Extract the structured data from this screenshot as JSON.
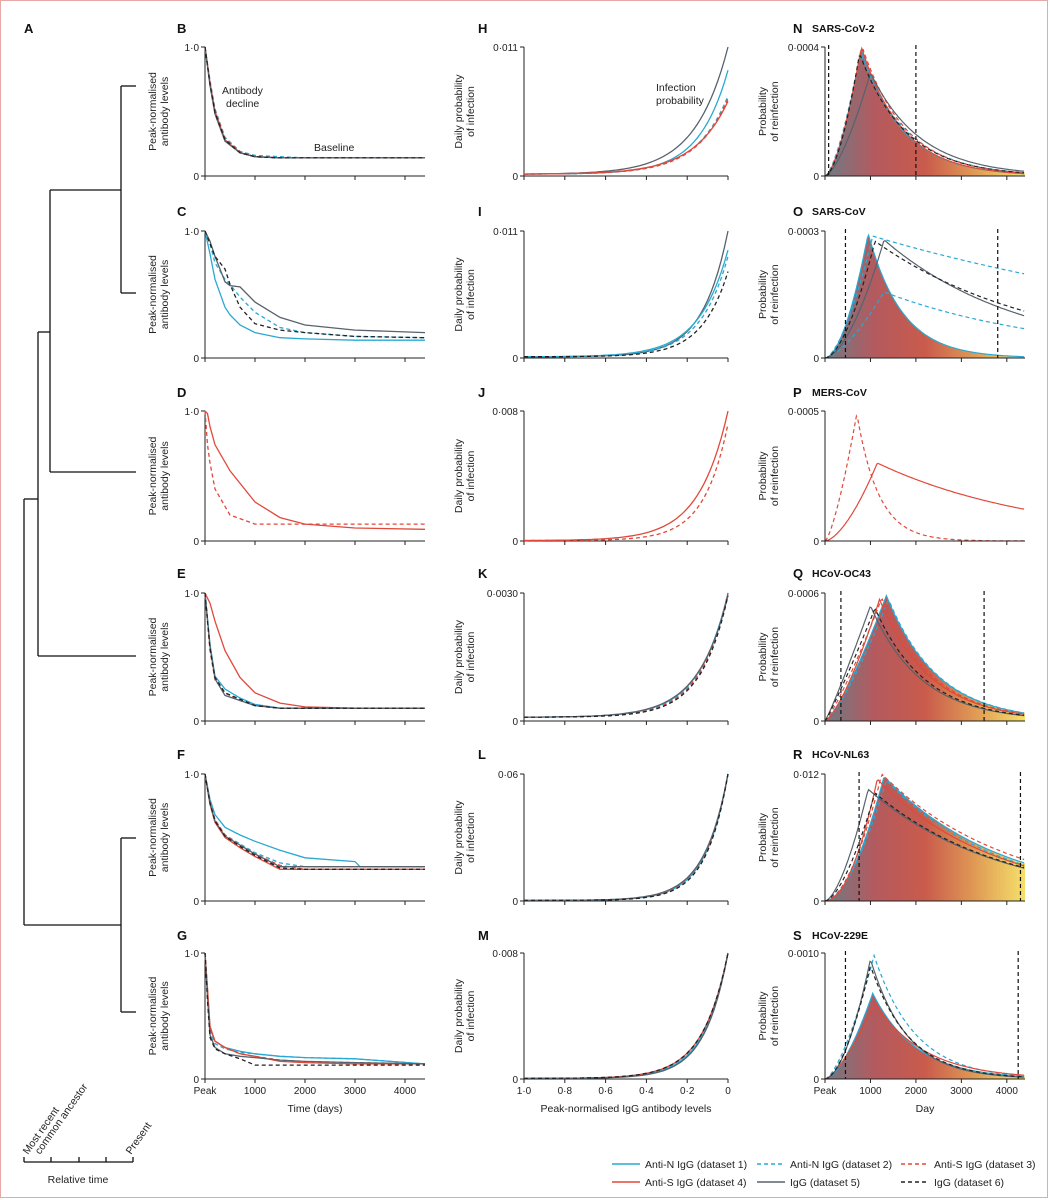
{
  "figure": {
    "panel_letters": {
      "A": "A",
      "B": "B",
      "C": "C",
      "D": "D",
      "E": "E",
      "F": "F",
      "G": "G",
      "H": "H",
      "I": "I",
      "J": "J",
      "K": "K",
      "L": "L",
      "M": "M",
      "N": "N",
      "O": "O",
      "P": "P",
      "Q": "Q",
      "R": "R",
      "S": "S"
    },
    "annotations": {
      "antibody_decline": [
        "Antibody",
        "decline"
      ],
      "baseline": "Baseline",
      "infection_probability": [
        "Infection",
        "probability"
      ]
    },
    "tree": {
      "time_labels": [
        "Most recent",
        "common ancestor",
        "Present"
      ],
      "axis_label": "Relative time"
    },
    "axis_titles": {
      "antibody": [
        "Peak-normalised",
        "antibody levels"
      ],
      "daily": [
        "Daily probability",
        "of infection"
      ],
      "reinfection": [
        "Probability",
        "of reinfection"
      ],
      "time_days": "Time (days)",
      "igg_levels": "Peak-normalised IgG antibody levels",
      "day": "Day"
    },
    "x_ticks": {
      "time": [
        "Peak",
        "1000",
        "2000",
        "3000",
        "4000"
      ],
      "levels": [
        "1·0",
        "0·8",
        "0·6",
        "0·4",
        "0·2",
        "0"
      ]
    }
  },
  "legend": [
    {
      "label": "Anti-N IgG (dataset 1)",
      "color": "#29a9d2",
      "dash": false
    },
    {
      "label": "Anti-N IgG (dataset 2)",
      "color": "#29a9d2",
      "dash": true
    },
    {
      "label": "Anti-S IgG (dataset 3)",
      "color": "#e0493a",
      "dash": true
    },
    {
      "label": "Anti-S IgG (dataset 4)",
      "color": "#e0493a",
      "dash": false
    },
    {
      "label": "IgG (dataset 5)",
      "color": "#58626d",
      "dash": false
    },
    {
      "label": "IgG (dataset 6)",
      "color": "#222222",
      "dash": true
    }
  ],
  "chart_data": [
    {
      "panel": "B",
      "type": "line",
      "xlabel": "",
      "ylabel": "Peak-normalised antibody levels",
      "x": [
        0,
        100,
        200,
        400,
        700,
        1000,
        1500,
        2000,
        3000,
        4400
      ],
      "series": [
        {
          "dataset": 1,
          "values": [
            1.0,
            0.72,
            0.5,
            0.28,
            0.18,
            0.15,
            0.14,
            0.14,
            0.14,
            0.14
          ]
        },
        {
          "dataset": 2,
          "values": [
            1.0,
            0.74,
            0.52,
            0.3,
            0.19,
            0.16,
            0.15,
            0.14,
            0.14,
            0.14
          ]
        },
        {
          "dataset": 3,
          "values": [
            1.0,
            0.73,
            0.51,
            0.29,
            0.19,
            0.15,
            0.14,
            0.14,
            0.14,
            0.14
          ]
        },
        {
          "dataset": 4,
          "values": [
            1.0,
            0.72,
            0.5,
            0.28,
            0.18,
            0.15,
            0.14,
            0.14,
            0.14,
            0.14
          ]
        },
        {
          "dataset": 5,
          "values": [
            1.0,
            0.7,
            0.48,
            0.27,
            0.18,
            0.15,
            0.14,
            0.14,
            0.14,
            0.14
          ]
        },
        {
          "dataset": 6,
          "values": [
            1.0,
            0.71,
            0.49,
            0.28,
            0.18,
            0.15,
            0.14,
            0.14,
            0.14,
            0.14
          ]
        }
      ],
      "yticks": [
        "1·0",
        "0"
      ]
    },
    {
      "panel": "C",
      "type": "line",
      "x": [
        0,
        100,
        200,
        400,
        500,
        700,
        1000,
        1500,
        2000,
        3000,
        4400
      ],
      "series": [
        {
          "dataset": 1,
          "values": [
            1.0,
            0.82,
            0.62,
            0.4,
            0.34,
            0.26,
            0.2,
            0.16,
            0.15,
            0.14,
            0.14
          ]
        },
        {
          "dataset": 2,
          "values": [
            1.0,
            0.9,
            0.75,
            0.62,
            0.58,
            0.48,
            0.36,
            0.24,
            0.2,
            0.17,
            0.16
          ]
        },
        {
          "dataset": 5,
          "values": [
            1.0,
            0.92,
            0.8,
            0.6,
            0.57,
            0.56,
            0.44,
            0.32,
            0.26,
            0.22,
            0.2
          ]
        },
        {
          "dataset": 6,
          "values": [
            1.0,
            0.9,
            0.8,
            0.7,
            0.58,
            0.4,
            0.27,
            0.22,
            0.2,
            0.17,
            0.16
          ]
        }
      ],
      "yticks": [
        "1·0",
        "0"
      ]
    },
    {
      "panel": "D",
      "type": "line",
      "x": [
        0,
        50,
        100,
        200,
        500,
        1000,
        1500,
        2000,
        3000,
        4400
      ],
      "series": [
        {
          "dataset": 4,
          "values": [
            1.0,
            0.98,
            0.88,
            0.74,
            0.54,
            0.3,
            0.18,
            0.13,
            0.1,
            0.09
          ]
        },
        {
          "dataset": 3,
          "values": [
            1.0,
            0.74,
            0.6,
            0.4,
            0.2,
            0.13,
            0.13,
            0.13,
            0.13,
            0.13
          ]
        }
      ],
      "yticks": [
        "1·0",
        "0"
      ]
    },
    {
      "panel": "E",
      "type": "line",
      "x": [
        0,
        100,
        200,
        400,
        700,
        1000,
        1500,
        2000,
        3000,
        4400
      ],
      "series": [
        {
          "dataset": 1,
          "values": [
            1.0,
            0.6,
            0.35,
            0.25,
            0.18,
            0.13,
            0.1,
            0.1,
            0.1,
            0.1
          ]
        },
        {
          "dataset": 2,
          "values": [
            1.0,
            0.58,
            0.33,
            0.22,
            0.16,
            0.12,
            0.1,
            0.1,
            0.1,
            0.1
          ]
        },
        {
          "dataset": 3,
          "values": [
            1.0,
            0.55,
            0.32,
            0.22,
            0.16,
            0.12,
            0.1,
            0.1,
            0.1,
            0.1
          ]
        },
        {
          "dataset": 4,
          "values": [
            1.0,
            0.92,
            0.78,
            0.55,
            0.34,
            0.22,
            0.14,
            0.11,
            0.1,
            0.1
          ]
        },
        {
          "dataset": 5,
          "values": [
            1.0,
            0.58,
            0.33,
            0.2,
            0.16,
            0.12,
            0.1,
            0.1,
            0.1,
            0.1
          ]
        },
        {
          "dataset": 6,
          "values": [
            1.0,
            0.57,
            0.34,
            0.22,
            0.17,
            0.12,
            0.1,
            0.1,
            0.1,
            0.1
          ]
        }
      ],
      "yticks": [
        "1·0",
        "0"
      ]
    },
    {
      "panel": "F",
      "type": "line",
      "x": [
        0,
        100,
        200,
        400,
        700,
        1000,
        1500,
        2000,
        3000,
        3100,
        4400
      ],
      "series": [
        {
          "dataset": 1,
          "values": [
            1.0,
            0.8,
            0.68,
            0.58,
            0.52,
            0.47,
            0.4,
            0.34,
            0.31,
            0.27,
            0.27
          ]
        },
        {
          "dataset": 2,
          "values": [
            1.0,
            0.78,
            0.64,
            0.52,
            0.45,
            0.38,
            0.3,
            0.27,
            0.27,
            0.27,
            0.27
          ]
        },
        {
          "dataset": 3,
          "values": [
            1.0,
            0.78,
            0.64,
            0.52,
            0.44,
            0.37,
            0.28,
            0.25,
            0.25,
            0.25,
            0.25
          ]
        },
        {
          "dataset": 4,
          "values": [
            1.0,
            0.76,
            0.62,
            0.5,
            0.42,
            0.35,
            0.25,
            0.25,
            0.25,
            0.25,
            0.25
          ]
        },
        {
          "dataset": 5,
          "values": [
            1.0,
            0.77,
            0.63,
            0.51,
            0.44,
            0.37,
            0.27,
            0.27,
            0.27,
            0.27,
            0.27
          ]
        },
        {
          "dataset": 6,
          "values": [
            1.0,
            0.77,
            0.63,
            0.51,
            0.43,
            0.36,
            0.26,
            0.25,
            0.25,
            0.25,
            0.25
          ]
        }
      ],
      "yticks": [
        "1·0",
        "0"
      ]
    },
    {
      "panel": "G",
      "type": "line",
      "x": [
        0,
        50,
        100,
        200,
        400,
        700,
        1000,
        1500,
        2000,
        3000,
        4400
      ],
      "series": [
        {
          "dataset": 1,
          "values": [
            1.0,
            0.7,
            0.4,
            0.3,
            0.25,
            0.22,
            0.2,
            0.18,
            0.17,
            0.16,
            0.12
          ]
        },
        {
          "dataset": 2,
          "values": [
            1.0,
            0.68,
            0.38,
            0.28,
            0.24,
            0.21,
            0.2,
            0.18,
            0.17,
            0.16,
            0.12
          ]
        },
        {
          "dataset": 3,
          "values": [
            1.0,
            0.7,
            0.4,
            0.3,
            0.25,
            0.2,
            0.18,
            0.15,
            0.14,
            0.13,
            0.12
          ]
        },
        {
          "dataset": 4,
          "values": [
            1.0,
            0.72,
            0.42,
            0.3,
            0.25,
            0.2,
            0.18,
            0.14,
            0.13,
            0.12,
            0.12
          ]
        },
        {
          "dataset": 5,
          "values": [
            1.0,
            0.65,
            0.35,
            0.25,
            0.2,
            0.18,
            0.17,
            0.15,
            0.14,
            0.13,
            0.12
          ]
        },
        {
          "dataset": 6,
          "values": [
            1.0,
            0.62,
            0.33,
            0.24,
            0.2,
            0.16,
            0.11,
            0.11,
            0.11,
            0.11,
            0.11
          ]
        }
      ],
      "yticks": [
        "1·0",
        "0"
      ]
    },
    {
      "panel": "H",
      "type": "line",
      "ymax": 0.011,
      "yticks": [
        "0·011",
        "0"
      ]
    },
    {
      "panel": "I",
      "type": "line",
      "ymax": 0.011,
      "yticks": [
        "0·011",
        "0"
      ]
    },
    {
      "panel": "J",
      "type": "line",
      "ymax": 0.008,
      "yticks": [
        "0·008",
        "0"
      ]
    },
    {
      "panel": "K",
      "type": "line",
      "ymax": 0.003,
      "yticks": [
        "0·0030",
        "0"
      ]
    },
    {
      "panel": "L",
      "type": "line",
      "ymax": 0.06,
      "yticks": [
        "0·06",
        "0"
      ]
    },
    {
      "panel": "M",
      "type": "line",
      "ymax": 0.008,
      "yticks": [
        "0·008",
        "0"
      ]
    },
    {
      "panel": "N",
      "type": "area",
      "virus": "SARS-CoV-2",
      "ymax": 0.0004,
      "yticks": [
        "0·0004",
        "0"
      ]
    },
    {
      "panel": "O",
      "type": "area",
      "virus": "SARS-CoV",
      "ymax": 0.0003,
      "yticks": [
        "0·0003",
        "0"
      ]
    },
    {
      "panel": "P",
      "type": "line",
      "virus": "MERS-CoV",
      "ymax": 0.0005,
      "yticks": [
        "0·0005",
        "0"
      ]
    },
    {
      "panel": "Q",
      "type": "area",
      "virus": "HCoV-OC43",
      "ymax": 0.0006,
      "yticks": [
        "0·0006",
        "0"
      ]
    },
    {
      "panel": "R",
      "type": "area",
      "virus": "HCoV-NL63",
      "ymax": 0.012,
      "yticks": [
        "0·012",
        "0"
      ]
    },
    {
      "panel": "S",
      "type": "area",
      "virus": "HCoV-229E",
      "ymax": 0.001,
      "yticks": [
        "0·0010",
        "0"
      ]
    }
  ]
}
